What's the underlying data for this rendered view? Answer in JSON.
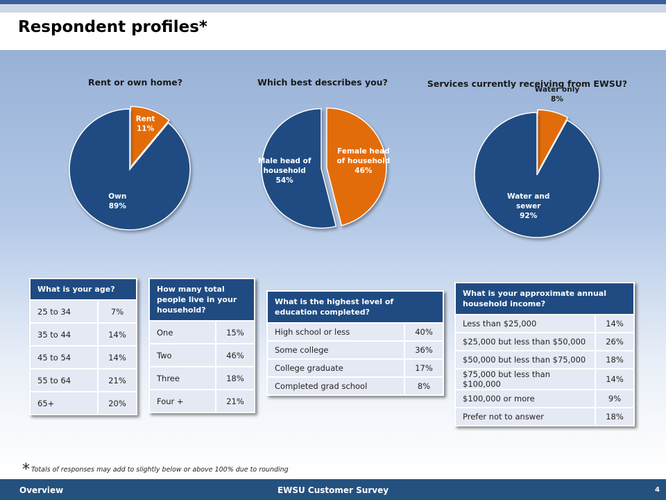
{
  "page": {
    "title": "Respondent profiles*",
    "footnote_star": "*",
    "footnote": "Totals of responses may add to slightly below or above 100% due to rounding",
    "footer_left": "Overview",
    "footer_center": "EWSU Customer Survey",
    "page_number": "4"
  },
  "colors": {
    "navy": "#1f4b82",
    "orange": "#e36c0a"
  },
  "chart_data": [
    {
      "type": "pie",
      "title": "Rent or own home?",
      "slices": [
        {
          "label": "Rent",
          "value": 11,
          "value_label": "11%",
          "color": "#e36c0a"
        },
        {
          "label": "Own",
          "value": 89,
          "value_label": "89%",
          "color": "#1f4b82"
        }
      ]
    },
    {
      "type": "pie",
      "title": "Which best describes you?",
      "slices": [
        {
          "label": "Female head of household",
          "value": 46,
          "value_label": "46%",
          "color": "#e36c0a"
        },
        {
          "label": "Male head of household",
          "value": 54,
          "value_label": "54%",
          "color": "#1f4b82"
        }
      ]
    },
    {
      "type": "pie",
      "title": "Services currently receiving from EWSU?",
      "slices": [
        {
          "label": "Water only",
          "value": 8,
          "value_label": "8%",
          "color": "#e36c0a"
        },
        {
          "label": "Water and sewer",
          "value": 92,
          "value_label": "92%",
          "color": "#1f4b82"
        }
      ]
    },
    {
      "type": "table",
      "title": "What is your age?",
      "rows": [
        [
          "25 to 34",
          "7%"
        ],
        [
          "35 to 44",
          "14%"
        ],
        [
          "45 to 54",
          "14%"
        ],
        [
          "55 to 64",
          "21%"
        ],
        [
          "65+",
          "20%"
        ]
      ]
    },
    {
      "type": "table",
      "title": "How many total people live in your household?",
      "rows": [
        [
          "One",
          "15%"
        ],
        [
          "Two",
          "46%"
        ],
        [
          "Three",
          "18%"
        ],
        [
          "Four +",
          "21%"
        ]
      ]
    },
    {
      "type": "table",
      "title": "What is the highest level of education completed?",
      "rows": [
        [
          "High school or less",
          "40%"
        ],
        [
          "Some college",
          "36%"
        ],
        [
          "College graduate",
          "17%"
        ],
        [
          "Completed grad school",
          "8%"
        ]
      ]
    },
    {
      "type": "table",
      "title": "What is your approximate annual household income?",
      "rows": [
        [
          "Less than $25,000",
          "14%"
        ],
        [
          "$25,000 but less than $50,000",
          "26%"
        ],
        [
          "$50,000 but less than $75,000",
          "18%"
        ],
        [
          "$75,000 but less than $100,000",
          "14%"
        ],
        [
          "$100,000 or more",
          "9%"
        ],
        [
          "Prefer not to answer",
          "18%"
        ]
      ]
    }
  ]
}
